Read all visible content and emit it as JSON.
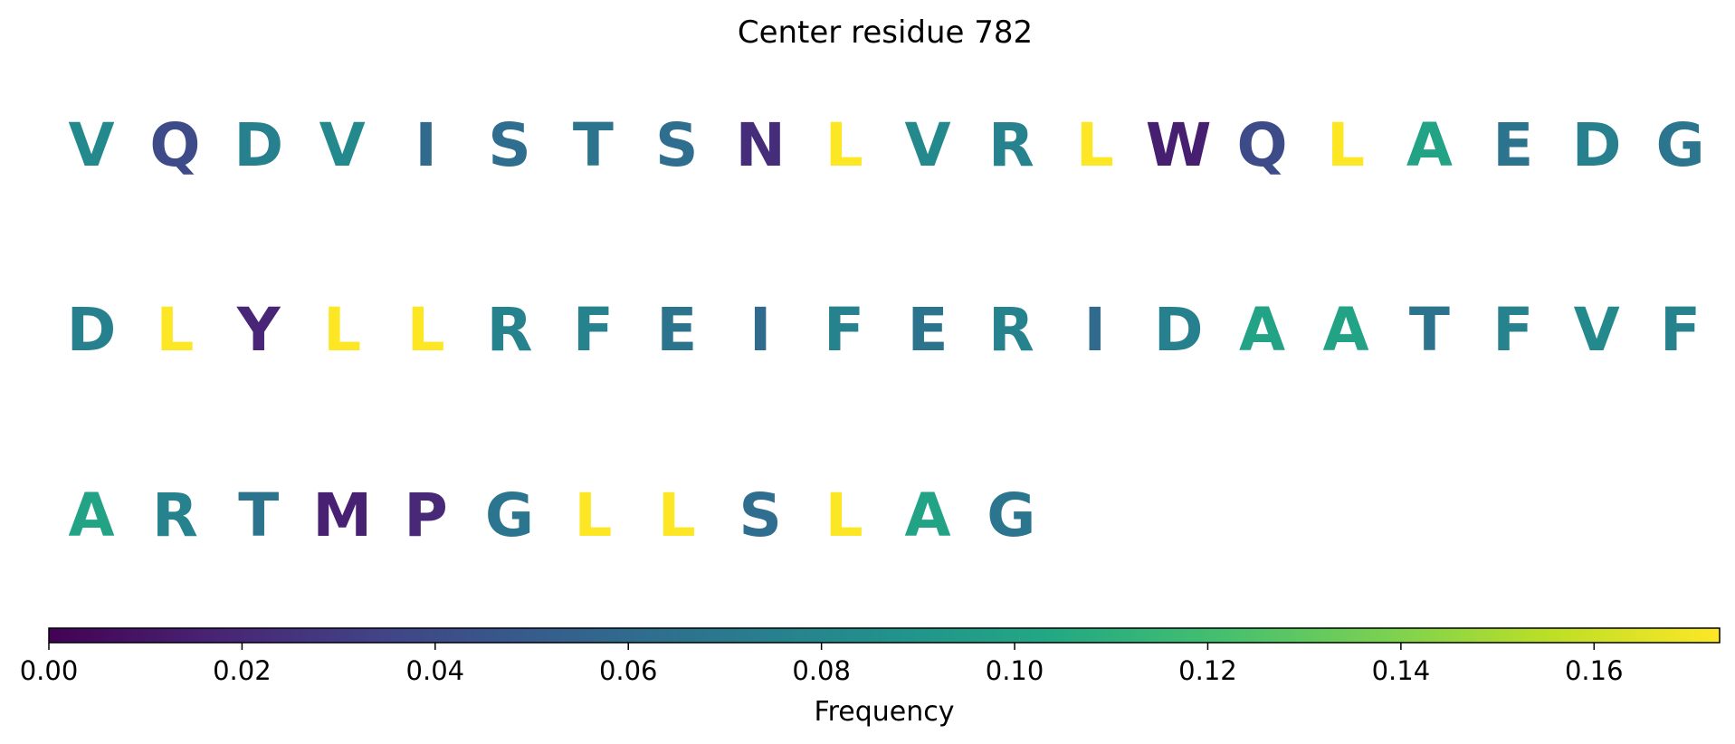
{
  "chart_data": {
    "type": "heatmap",
    "title": "Center residue 782",
    "colorbar": {
      "label": "Frequency",
      "vmin": 0.0,
      "vmax": 0.173,
      "colormap": "viridis",
      "orientation": "horizontal",
      "ticks": [
        "0.00",
        "0.02",
        "0.04",
        "0.06",
        "0.08",
        "0.10",
        "0.12",
        "0.14",
        "0.16"
      ],
      "tick_values": [
        0,
        0.02,
        0.04,
        0.06,
        0.08,
        0.1,
        0.12,
        0.14,
        0.16
      ]
    },
    "residues_per_row": 20,
    "residues": [
      {
        "letter": "V",
        "frequency": 0.081
      },
      {
        "letter": "Q",
        "frequency": 0.04
      },
      {
        "letter": "D",
        "frequency": 0.075
      },
      {
        "letter": "V",
        "frequency": 0.081
      },
      {
        "letter": "I",
        "frequency": 0.06
      },
      {
        "letter": "S",
        "frequency": 0.062
      },
      {
        "letter": "T",
        "frequency": 0.066
      },
      {
        "letter": "S",
        "frequency": 0.062
      },
      {
        "letter": "N",
        "frequency": 0.022
      },
      {
        "letter": "L",
        "frequency": 0.173
      },
      {
        "letter": "V",
        "frequency": 0.081
      },
      {
        "letter": "R",
        "frequency": 0.076
      },
      {
        "letter": "L",
        "frequency": 0.173
      },
      {
        "letter": "W",
        "frequency": 0.015
      },
      {
        "letter": "Q",
        "frequency": 0.04
      },
      {
        "letter": "L",
        "frequency": 0.173
      },
      {
        "letter": "A",
        "frequency": 0.1
      },
      {
        "letter": "E",
        "frequency": 0.066
      },
      {
        "letter": "D",
        "frequency": 0.075
      },
      {
        "letter": "G",
        "frequency": 0.068
      },
      {
        "letter": "D",
        "frequency": 0.075
      },
      {
        "letter": "L",
        "frequency": 0.173
      },
      {
        "letter": "Y",
        "frequency": 0.018
      },
      {
        "letter": "L",
        "frequency": 0.173
      },
      {
        "letter": "L",
        "frequency": 0.173
      },
      {
        "letter": "R",
        "frequency": 0.076
      },
      {
        "letter": "F",
        "frequency": 0.076
      },
      {
        "letter": "E",
        "frequency": 0.066
      },
      {
        "letter": "I",
        "frequency": 0.06
      },
      {
        "letter": "F",
        "frequency": 0.076
      },
      {
        "letter": "E",
        "frequency": 0.066
      },
      {
        "letter": "R",
        "frequency": 0.076
      },
      {
        "letter": "I",
        "frequency": 0.06
      },
      {
        "letter": "D",
        "frequency": 0.075
      },
      {
        "letter": "A",
        "frequency": 0.1
      },
      {
        "letter": "A",
        "frequency": 0.1
      },
      {
        "letter": "T",
        "frequency": 0.066
      },
      {
        "letter": "F",
        "frequency": 0.076
      },
      {
        "letter": "V",
        "frequency": 0.081
      },
      {
        "letter": "F",
        "frequency": 0.076
      },
      {
        "letter": "A",
        "frequency": 0.1
      },
      {
        "letter": "R",
        "frequency": 0.076
      },
      {
        "letter": "T",
        "frequency": 0.066
      },
      {
        "letter": "M",
        "frequency": 0.016
      },
      {
        "letter": "P",
        "frequency": 0.02
      },
      {
        "letter": "G",
        "frequency": 0.068
      },
      {
        "letter": "L",
        "frequency": 0.173
      },
      {
        "letter": "L",
        "frequency": 0.173
      },
      {
        "letter": "S",
        "frequency": 0.062
      },
      {
        "letter": "L",
        "frequency": 0.173
      },
      {
        "letter": "A",
        "frequency": 0.1
      },
      {
        "letter": "G",
        "frequency": 0.068
      }
    ]
  }
}
